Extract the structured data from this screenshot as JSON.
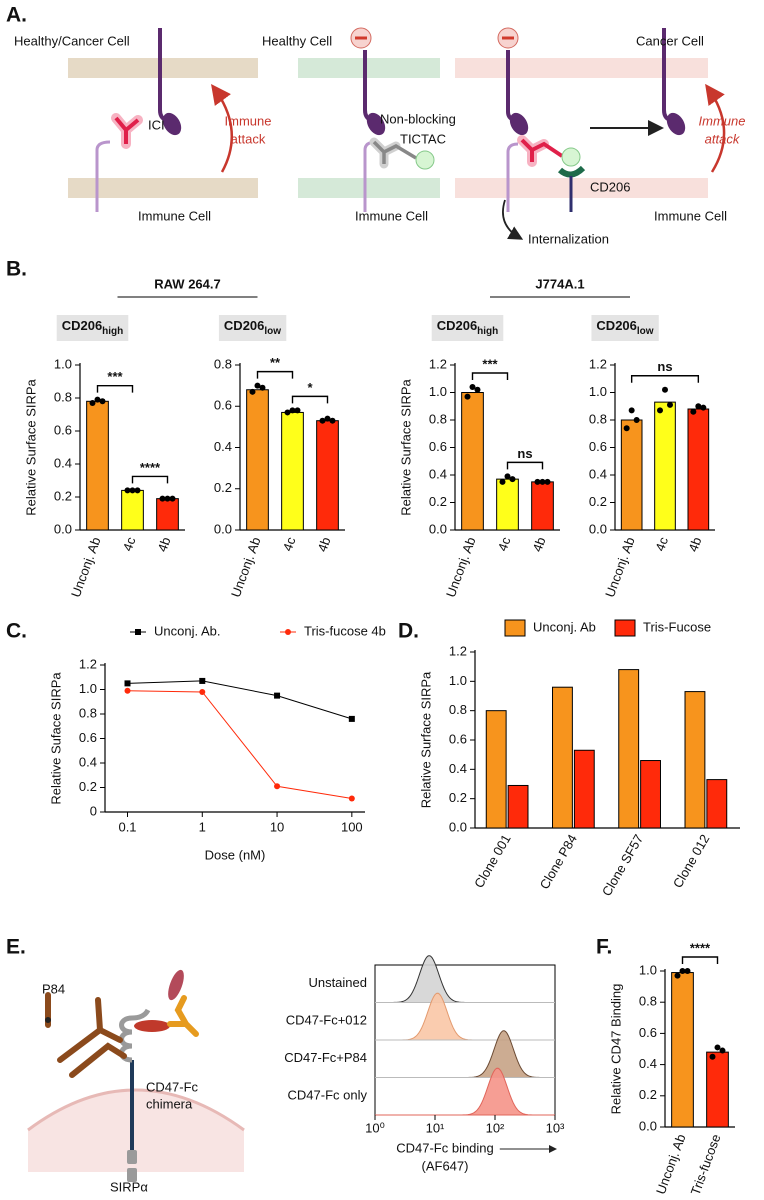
{
  "figure": {
    "panel_labels": [
      "A.",
      "B.",
      "C.",
      "D.",
      "E.",
      "F."
    ],
    "diagram_a": {
      "cell_1": "Healthy/Cancer Cell",
      "drug_1": "ICI",
      "attack_1": [
        "Immune",
        "attack"
      ],
      "immune_1": "Immune Cell",
      "cell_2": "Healthy Cell",
      "drug_2": [
        "Non-blocking",
        "TICTAC"
      ],
      "immune_2": "Immune Cell",
      "receptor_3": "CD206",
      "process_3": "Internalization",
      "cell_3": "Cancer Cell",
      "attack_3": [
        "Immune",
        "attack"
      ],
      "immune_3": "Immune Cell"
    },
    "diagram_e": {
      "antibody": "P84",
      "fusion": [
        "CD47-Fc",
        "chimera"
      ],
      "receptor": "SIRPα"
    }
  },
  "chart_data": [
    {
      "type": "bar",
      "group_title": "RAW 264.7",
      "title": "CD206",
      "title_sub": "high",
      "ylabel": "Relative Surface SIRPa",
      "categories": [
        "Unconj. Ab",
        "4c",
        "4b"
      ],
      "values": [
        0.78,
        0.24,
        0.19
      ],
      "points": [
        [
          0.77,
          0.79,
          0.78
        ],
        [
          0.24,
          0.24,
          0.24
        ],
        [
          0.19,
          0.19,
          0.19
        ]
      ],
      "colors": [
        "#f7941d",
        "#ffff1a",
        "#ff2a0a"
      ],
      "ylim": [
        0,
        1
      ],
      "yticks": [
        {
          "value": 0,
          "label": "0.0"
        },
        0.2,
        0.4,
        0.6,
        0.8,
        {
          "value": 1,
          "label": "1.0"
        }
      ],
      "significance": [
        {
          "label": "***",
          "between": [
            "Unconj. Ab",
            "4c"
          ]
        },
        {
          "label": "****",
          "between": [
            "4c",
            "4b"
          ]
        }
      ]
    },
    {
      "type": "bar",
      "title": "CD206",
      "title_sub": "low",
      "categories": [
        "Unconj. Ab",
        "4c",
        "4b"
      ],
      "values": [
        0.68,
        0.57,
        0.53
      ],
      "points": [
        [
          0.67,
          0.7,
          0.69
        ],
        [
          0.57,
          0.58,
          0.58
        ],
        [
          0.53,
          0.54,
          0.53
        ]
      ],
      "colors": [
        "#f7941d",
        "#ffff1a",
        "#ff2a0a"
      ],
      "ylim": [
        0,
        0.8
      ],
      "yticks": [
        {
          "value": 0,
          "label": "0.0"
        },
        0.2,
        0.4,
        0.6,
        0.8
      ],
      "significance": [
        {
          "label": "**",
          "between": [
            "Unconj. Ab",
            "4c"
          ]
        },
        {
          "label": "*",
          "between": [
            "4c",
            "4b"
          ]
        }
      ]
    },
    {
      "type": "bar",
      "group_title": "J774A.1",
      "title": "CD206",
      "title_sub": "high",
      "ylabel": "Relative Surface SIRPa",
      "categories": [
        "Unconj. Ab",
        "4c",
        "4b"
      ],
      "values": [
        1.0,
        0.37,
        0.35
      ],
      "points": [
        [
          0.97,
          1.04,
          1.02
        ],
        [
          0.35,
          0.39,
          0.37
        ],
        [
          0.35,
          0.35,
          0.35
        ]
      ],
      "colors": [
        "#f7941d",
        "#ffff1a",
        "#ff2a0a"
      ],
      "ylim": [
        0,
        1.2
      ],
      "yticks": [
        {
          "value": 0,
          "label": "0.0"
        },
        0.2,
        0.4,
        0.6,
        0.8,
        {
          "value": 1,
          "label": "1.0"
        },
        1.2
      ],
      "significance": [
        {
          "label": "***",
          "between": [
            "Unconj. Ab",
            "4c"
          ]
        },
        {
          "label": "ns",
          "between": [
            "4c",
            "4b"
          ]
        }
      ]
    },
    {
      "type": "bar",
      "title": "CD206",
      "title_sub": "low",
      "categories": [
        "Unconj. Ab",
        "4c",
        "4b"
      ],
      "values": [
        0.8,
        0.93,
        0.88
      ],
      "points": [
        [
          0.74,
          0.87,
          0.8
        ],
        [
          0.87,
          1.02,
          0.91
        ],
        [
          0.86,
          0.9,
          0.89
        ]
      ],
      "colors": [
        "#f7941d",
        "#ffff1a",
        "#ff2a0a"
      ],
      "ylim": [
        0,
        1.2
      ],
      "yticks": [
        {
          "value": 0,
          "label": "0.0"
        },
        0.2,
        0.4,
        0.6,
        0.8,
        {
          "value": 1,
          "label": "1.0"
        },
        1.2
      ],
      "significance": [
        {
          "label": "ns",
          "between": [
            "Unconj. Ab",
            "4b"
          ]
        }
      ]
    },
    {
      "type": "line",
      "ylabel": "Relative Suface SIRPa",
      "xlabel": "Dose (nM)",
      "xscale": "log",
      "x": [
        0.1,
        1,
        10,
        100
      ],
      "xlim": [
        0.05,
        150
      ],
      "xticks": [
        0.1,
        1,
        10,
        100
      ],
      "ylim": [
        0,
        1.2
      ],
      "yticks": [
        0,
        0.2,
        0.4,
        0.6,
        0.8,
        {
          "value": 1,
          "label": "1.0"
        },
        1.2
      ],
      "legend": "top",
      "series": [
        {
          "name": "Unconj. Ab.",
          "color": "#000000",
          "marker": "square",
          "values": [
            1.05,
            1.07,
            0.95,
            0.76
          ]
        },
        {
          "name": "Tris-fucose 4b",
          "color": "#ff2a0a",
          "marker": "circle",
          "values": [
            0.99,
            0.98,
            0.21,
            0.11
          ]
        }
      ]
    },
    {
      "type": "grouped_bar",
      "ylabel": "Relative Surface SIRPa",
      "legend": "top",
      "categories": [
        "Clone 001",
        "Clone P84",
        "Clone SF57",
        "Clone 012"
      ],
      "series": [
        {
          "name": "Unconj. Ab",
          "color": "#f7941d",
          "values": [
            0.8,
            0.96,
            1.08,
            0.93
          ]
        },
        {
          "name": "Tris-Fucose",
          "color": "#ff2a0a",
          "values": [
            0.29,
            0.53,
            0.46,
            0.33
          ]
        }
      ],
      "ylim": [
        0,
        1.2
      ],
      "yticks": [
        {
          "value": 0,
          "label": "0.0"
        },
        0.2,
        0.4,
        0.6,
        0.8,
        {
          "value": 1,
          "label": "1.0"
        },
        1.2
      ]
    },
    {
      "type": "histogram_overlay",
      "xlabel": "CD47-Fc binding",
      "xlabel_sub": "(AF647)",
      "xscale": "log",
      "xlim": [
        1,
        1000
      ],
      "xticks": [
        {
          "value": 1,
          "label": "10⁰"
        },
        {
          "value": 10,
          "label": "10¹"
        },
        {
          "value": 100,
          "label": "10²"
        },
        {
          "value": 1000,
          "label": "10³"
        }
      ],
      "series": [
        {
          "name": "Unstained",
          "color": "#d4d4d4",
          "edgecolor": "#333333",
          "mode": 8
        },
        {
          "name": "CD47-Fc+012",
          "color": "#f9c7a6",
          "edgecolor": "#e39a6e",
          "mode": 11
        },
        {
          "name": "CD47-Fc+P84",
          "color": "#c7a386",
          "edgecolor": "#6b4a33",
          "mode": 140
        },
        {
          "name": "CD47-Fc only",
          "color": "#f59488",
          "edgecolor": "#e0655a",
          "mode": 110
        }
      ]
    },
    {
      "type": "bar",
      "ylabel": "Relative CD47 Binding",
      "categories": [
        "Unconj. Ab",
        "Tris-fucose"
      ],
      "values": [
        0.99,
        0.48
      ],
      "points": [
        [
          0.97,
          1.0,
          1.0
        ],
        [
          0.45,
          0.51,
          0.49
        ]
      ],
      "colors": [
        "#f7941d",
        "#ff2a0a"
      ],
      "ylim": [
        0,
        1
      ],
      "yticks": [
        {
          "value": 0,
          "label": "0.0"
        },
        0.2,
        0.4,
        0.6,
        0.8,
        {
          "value": 1,
          "label": "1.0"
        }
      ],
      "significance": [
        {
          "label": "****",
          "between": [
            "Unconj. Ab",
            "Tris-fucose"
          ]
        }
      ]
    }
  ]
}
